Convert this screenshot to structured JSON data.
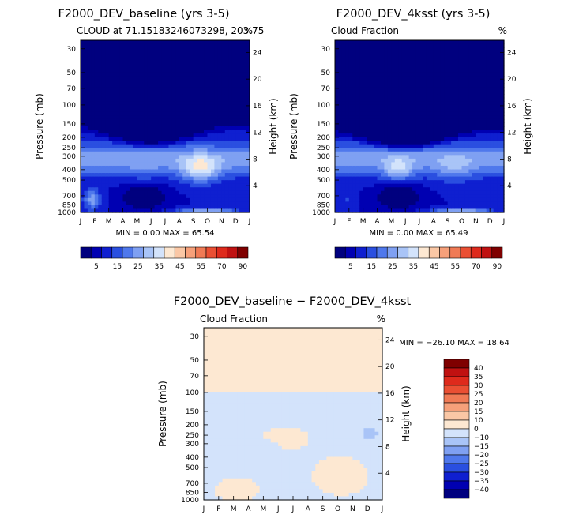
{
  "panels": [
    {
      "title": "F2000_DEV_baseline (yrs 3-5)",
      "subtitle_left": "CLOUD at 71.15183246073298, 203.75",
      "subtitle_right": "%",
      "stats": "MIN =   0.00 MAX =  65.54",
      "ylabel": "Pressure (mb)",
      "ylabel_right": "Height (km)"
    },
    {
      "title": "F2000_DEV_4ksst (yrs 3-5)",
      "subtitle_left": "Cloud Fraction",
      "subtitle_right": "%",
      "stats": "MIN =   0.00 MAX =  65.49",
      "ylabel": "Pressure (mb)",
      "ylabel_right": "Height (km)"
    },
    {
      "title": "F2000_DEV_baseline − F2000_DEV_4ksst",
      "subtitle_left": "Cloud Fraction",
      "subtitle_right": "%",
      "stats": "MIN = −26.10 MAX =  18.64",
      "ylabel": "Pressure (mb)",
      "ylabel_right": "Height (km)"
    }
  ],
  "chart_data": [
    {
      "type": "heatmap",
      "title": "F2000_DEV_baseline (yrs 3-5)",
      "subtitle": "CLOUD at 71.15183246073298, 203.75",
      "units": "%",
      "xlabel": "",
      "ylabel": "Pressure (mb)",
      "ylabel_right": "Height (km)",
      "x_ticks": [
        "J",
        "F",
        "M",
        "A",
        "M",
        "J",
        "J",
        "A",
        "S",
        "O",
        "N",
        "D",
        "J"
      ],
      "y_ticks": [
        30,
        50,
        70,
        100,
        150,
        200,
        250,
        300,
        400,
        500,
        700,
        850,
        1000
      ],
      "y_scale": "log-pressure",
      "y_right_ticks": [
        24,
        20,
        16,
        12,
        8,
        4
      ],
      "min": 0.0,
      "max": 65.54,
      "colorbar_labels": [
        "5",
        "15",
        "25",
        "35",
        "45",
        "55",
        "70",
        "90"
      ],
      "colors": [
        "#00007f",
        "#0000b2",
        "#0f1fd0",
        "#2a4fe0",
        "#4f78ec",
        "#7fa0f2",
        "#a9c4f7",
        "#d3e3fb",
        "#fde8d2",
        "#fac7a5",
        "#f6a07a",
        "#f07a55",
        "#ea4f33",
        "#de2a1c",
        "#c01111",
        "#7f0000"
      ]
    },
    {
      "type": "heatmap",
      "title": "F2000_DEV_4ksst (yrs 3-5)",
      "subtitle": "Cloud Fraction",
      "units": "%",
      "xlabel": "",
      "ylabel": "Pressure (mb)",
      "ylabel_right": "Height (km)",
      "x_ticks": [
        "J",
        "F",
        "M",
        "A",
        "M",
        "J",
        "J",
        "A",
        "S",
        "O",
        "N",
        "D",
        "J"
      ],
      "y_ticks": [
        30,
        50,
        70,
        100,
        150,
        200,
        250,
        300,
        400,
        500,
        700,
        850,
        1000
      ],
      "y_scale": "log-pressure",
      "y_right_ticks": [
        24,
        20,
        16,
        12,
        8,
        4
      ],
      "min": 0.0,
      "max": 65.49,
      "colorbar_labels": [
        "5",
        "15",
        "25",
        "35",
        "45",
        "55",
        "70",
        "90"
      ],
      "colors": [
        "#00007f",
        "#0000b2",
        "#0f1fd0",
        "#2a4fe0",
        "#4f78ec",
        "#7fa0f2",
        "#a9c4f7",
        "#d3e3fb",
        "#fde8d2",
        "#fac7a5",
        "#f6a07a",
        "#f07a55",
        "#ea4f33",
        "#de2a1c",
        "#c01111",
        "#7f0000"
      ]
    },
    {
      "type": "heatmap",
      "title": "F2000_DEV_baseline − F2000_DEV_4ksst",
      "subtitle": "Cloud Fraction",
      "units": "%",
      "xlabel": "",
      "ylabel": "Pressure (mb)",
      "ylabel_right": "Height (km)",
      "x_ticks": [
        "J",
        "F",
        "M",
        "A",
        "M",
        "J",
        "J",
        "A",
        "S",
        "O",
        "N",
        "D",
        "J"
      ],
      "y_ticks": [
        30,
        50,
        70,
        100,
        150,
        200,
        250,
        300,
        400,
        500,
        700,
        850,
        1000
      ],
      "y_scale": "log-pressure",
      "y_right_ticks": [
        24,
        20,
        16,
        12,
        8,
        4
      ],
      "min": -26.1,
      "max": 18.64,
      "colorbar_labels": [
        "40",
        "35",
        "30",
        "25",
        "20",
        "15",
        "10",
        "0",
        "−10",
        "−15",
        "−20",
        "−25",
        "−30",
        "−35",
        "−40"
      ],
      "colors": [
        "#7f0000",
        "#c01111",
        "#de2a1c",
        "#ea4f33",
        "#f07a55",
        "#f6a07a",
        "#fac7a5",
        "#fde8d2",
        "#d3e3fb",
        "#a9c4f7",
        "#7fa0f2",
        "#4f78ec",
        "#2a4fe0",
        "#0f1fd0",
        "#0000b2",
        "#00007f"
      ]
    }
  ]
}
